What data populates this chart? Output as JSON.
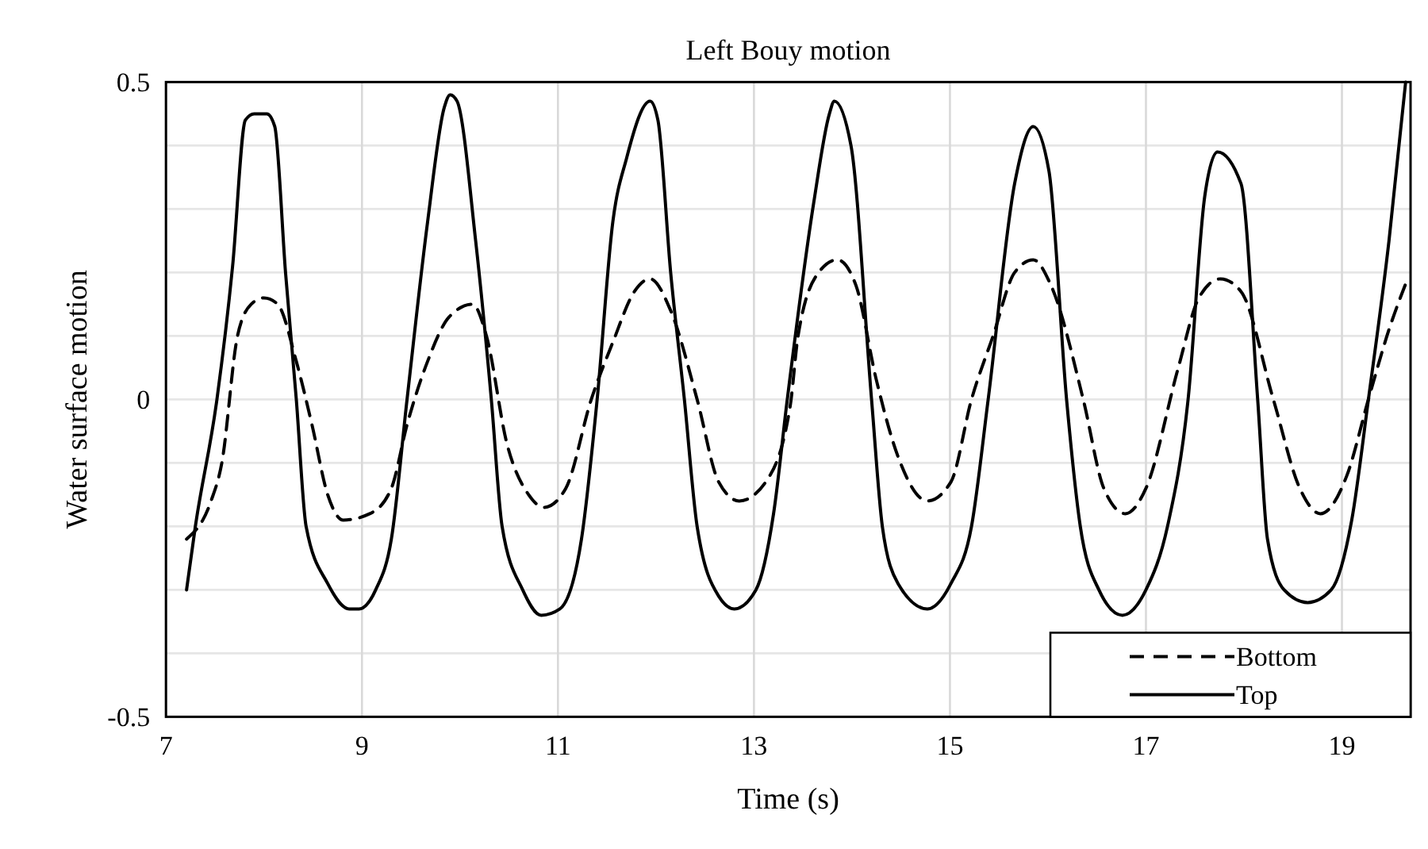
{
  "chart_data": {
    "type": "line",
    "title": "Left Bouy motion",
    "xlabel": "Time (s)",
    "ylabel": "Water surface motion",
    "xlim": [
      7,
      19.7
    ],
    "xticks": [
      7,
      9,
      11,
      13,
      15,
      17,
      19
    ],
    "ylim": [
      -0.5,
      0.5
    ],
    "yticks": [
      -0.5,
      {
        "value": -0.4,
        "label": null
      },
      {
        "value": -0.3,
        "label": null
      },
      {
        "value": -0.2,
        "label": null
      },
      {
        "value": -0.1,
        "label": null
      },
      0,
      {
        "value": 0.1,
        "label": null
      },
      {
        "value": 0.2,
        "label": null
      },
      {
        "value": 0.3,
        "label": null
      },
      {
        "value": 0.4,
        "label": null
      },
      0.5
    ],
    "grid": true,
    "legend": "bottom right",
    "marker": "none",
    "series": [
      {
        "name": "Bottom",
        "color": "#000000",
        "line_style": "dashed",
        "x": [
          7.21,
          7.46,
          7.57,
          7.73,
          7.87,
          8.0,
          8.14,
          8.33,
          8.49,
          8.65,
          8.81,
          9.08,
          9.3,
          9.46,
          9.67,
          9.89,
          10.13,
          10.27,
          10.48,
          10.7,
          10.86,
          11.08,
          11.34,
          11.56,
          11.78,
          11.94,
          12.15,
          12.42,
          12.64,
          12.85,
          13.12,
          13.37,
          13.45,
          13.66,
          13.85,
          14.04,
          14.25,
          14.47,
          14.77,
          15.01,
          15.22,
          15.44,
          15.66,
          15.85,
          16.03,
          16.36,
          16.57,
          16.79,
          17.0,
          17.33,
          17.54,
          17.76,
          17.97,
          18.3,
          18.57,
          18.78,
          19.05,
          19.27,
          19.48,
          19.67
        ],
        "values": [
          -0.22,
          -0.16,
          -0.1,
          0.1,
          0.15,
          0.16,
          0.15,
          0.06,
          -0.04,
          -0.15,
          -0.19,
          -0.18,
          -0.14,
          -0.04,
          0.06,
          0.13,
          0.15,
          0.1,
          -0.07,
          -0.15,
          -0.17,
          -0.14,
          0,
          0.09,
          0.17,
          0.19,
          0.14,
          0,
          -0.13,
          -0.16,
          -0.13,
          -0.01,
          0.1,
          0.2,
          0.22,
          0.18,
          0.03,
          -0.09,
          -0.16,
          -0.13,
          0,
          0.1,
          0.2,
          0.22,
          0.18,
          0,
          -0.14,
          -0.18,
          -0.14,
          0.05,
          0.16,
          0.19,
          0.17,
          0,
          -0.14,
          -0.18,
          -0.12,
          0,
          0.11,
          0.19
        ]
      },
      {
        "name": "Top",
        "color": "#000000",
        "line_style": "solid",
        "x": [
          7.21,
          7.3,
          7.52,
          7.68,
          7.81,
          7.9,
          8.03,
          8.11,
          8.22,
          8.33,
          8.43,
          8.65,
          8.87,
          8.97,
          9.14,
          9.3,
          9.46,
          9.67,
          9.84,
          9.9,
          9.97,
          10.16,
          10.32,
          10.43,
          10.64,
          10.83,
          11.02,
          11.24,
          11.4,
          11.56,
          11.7,
          11.94,
          12.02,
          12.15,
          12.29,
          12.42,
          12.64,
          12.8,
          13.02,
          13.2,
          13.34,
          13.61,
          13.77,
          13.82,
          13.99,
          14.2,
          14.31,
          14.47,
          14.77,
          15.01,
          15.22,
          15.39,
          15.66,
          15.85,
          16.01,
          16.19,
          16.33,
          16.52,
          16.76,
          17.0,
          17.22,
          17.43,
          17.6,
          17.73,
          17.97,
          18.14,
          18.24,
          18.41,
          18.65,
          18.89,
          19.1,
          19.27,
          19.48,
          19.65
        ],
        "values": [
          -0.3,
          -0.2,
          0,
          0.21,
          0.44,
          0.45,
          0.45,
          0.43,
          0.2,
          0,
          -0.2,
          -0.29,
          -0.33,
          -0.33,
          -0.3,
          -0.22,
          0,
          0.28,
          0.46,
          0.48,
          0.47,
          0.25,
          0,
          -0.2,
          -0.3,
          -0.34,
          -0.33,
          -0.22,
          0,
          0.28,
          0.38,
          0.47,
          0.44,
          0.2,
          0,
          -0.2,
          -0.31,
          -0.33,
          -0.3,
          -0.18,
          0,
          0.31,
          0.45,
          0.47,
          0.4,
          0,
          -0.2,
          -0.29,
          -0.33,
          -0.29,
          -0.2,
          0,
          0.34,
          0.43,
          0.36,
          0,
          -0.2,
          -0.3,
          -0.34,
          -0.3,
          -0.2,
          0,
          0.32,
          0.39,
          0.34,
          0,
          -0.22,
          -0.3,
          -0.32,
          -0.3,
          -0.19,
          0,
          0.25,
          0.5
        ]
      }
    ]
  }
}
